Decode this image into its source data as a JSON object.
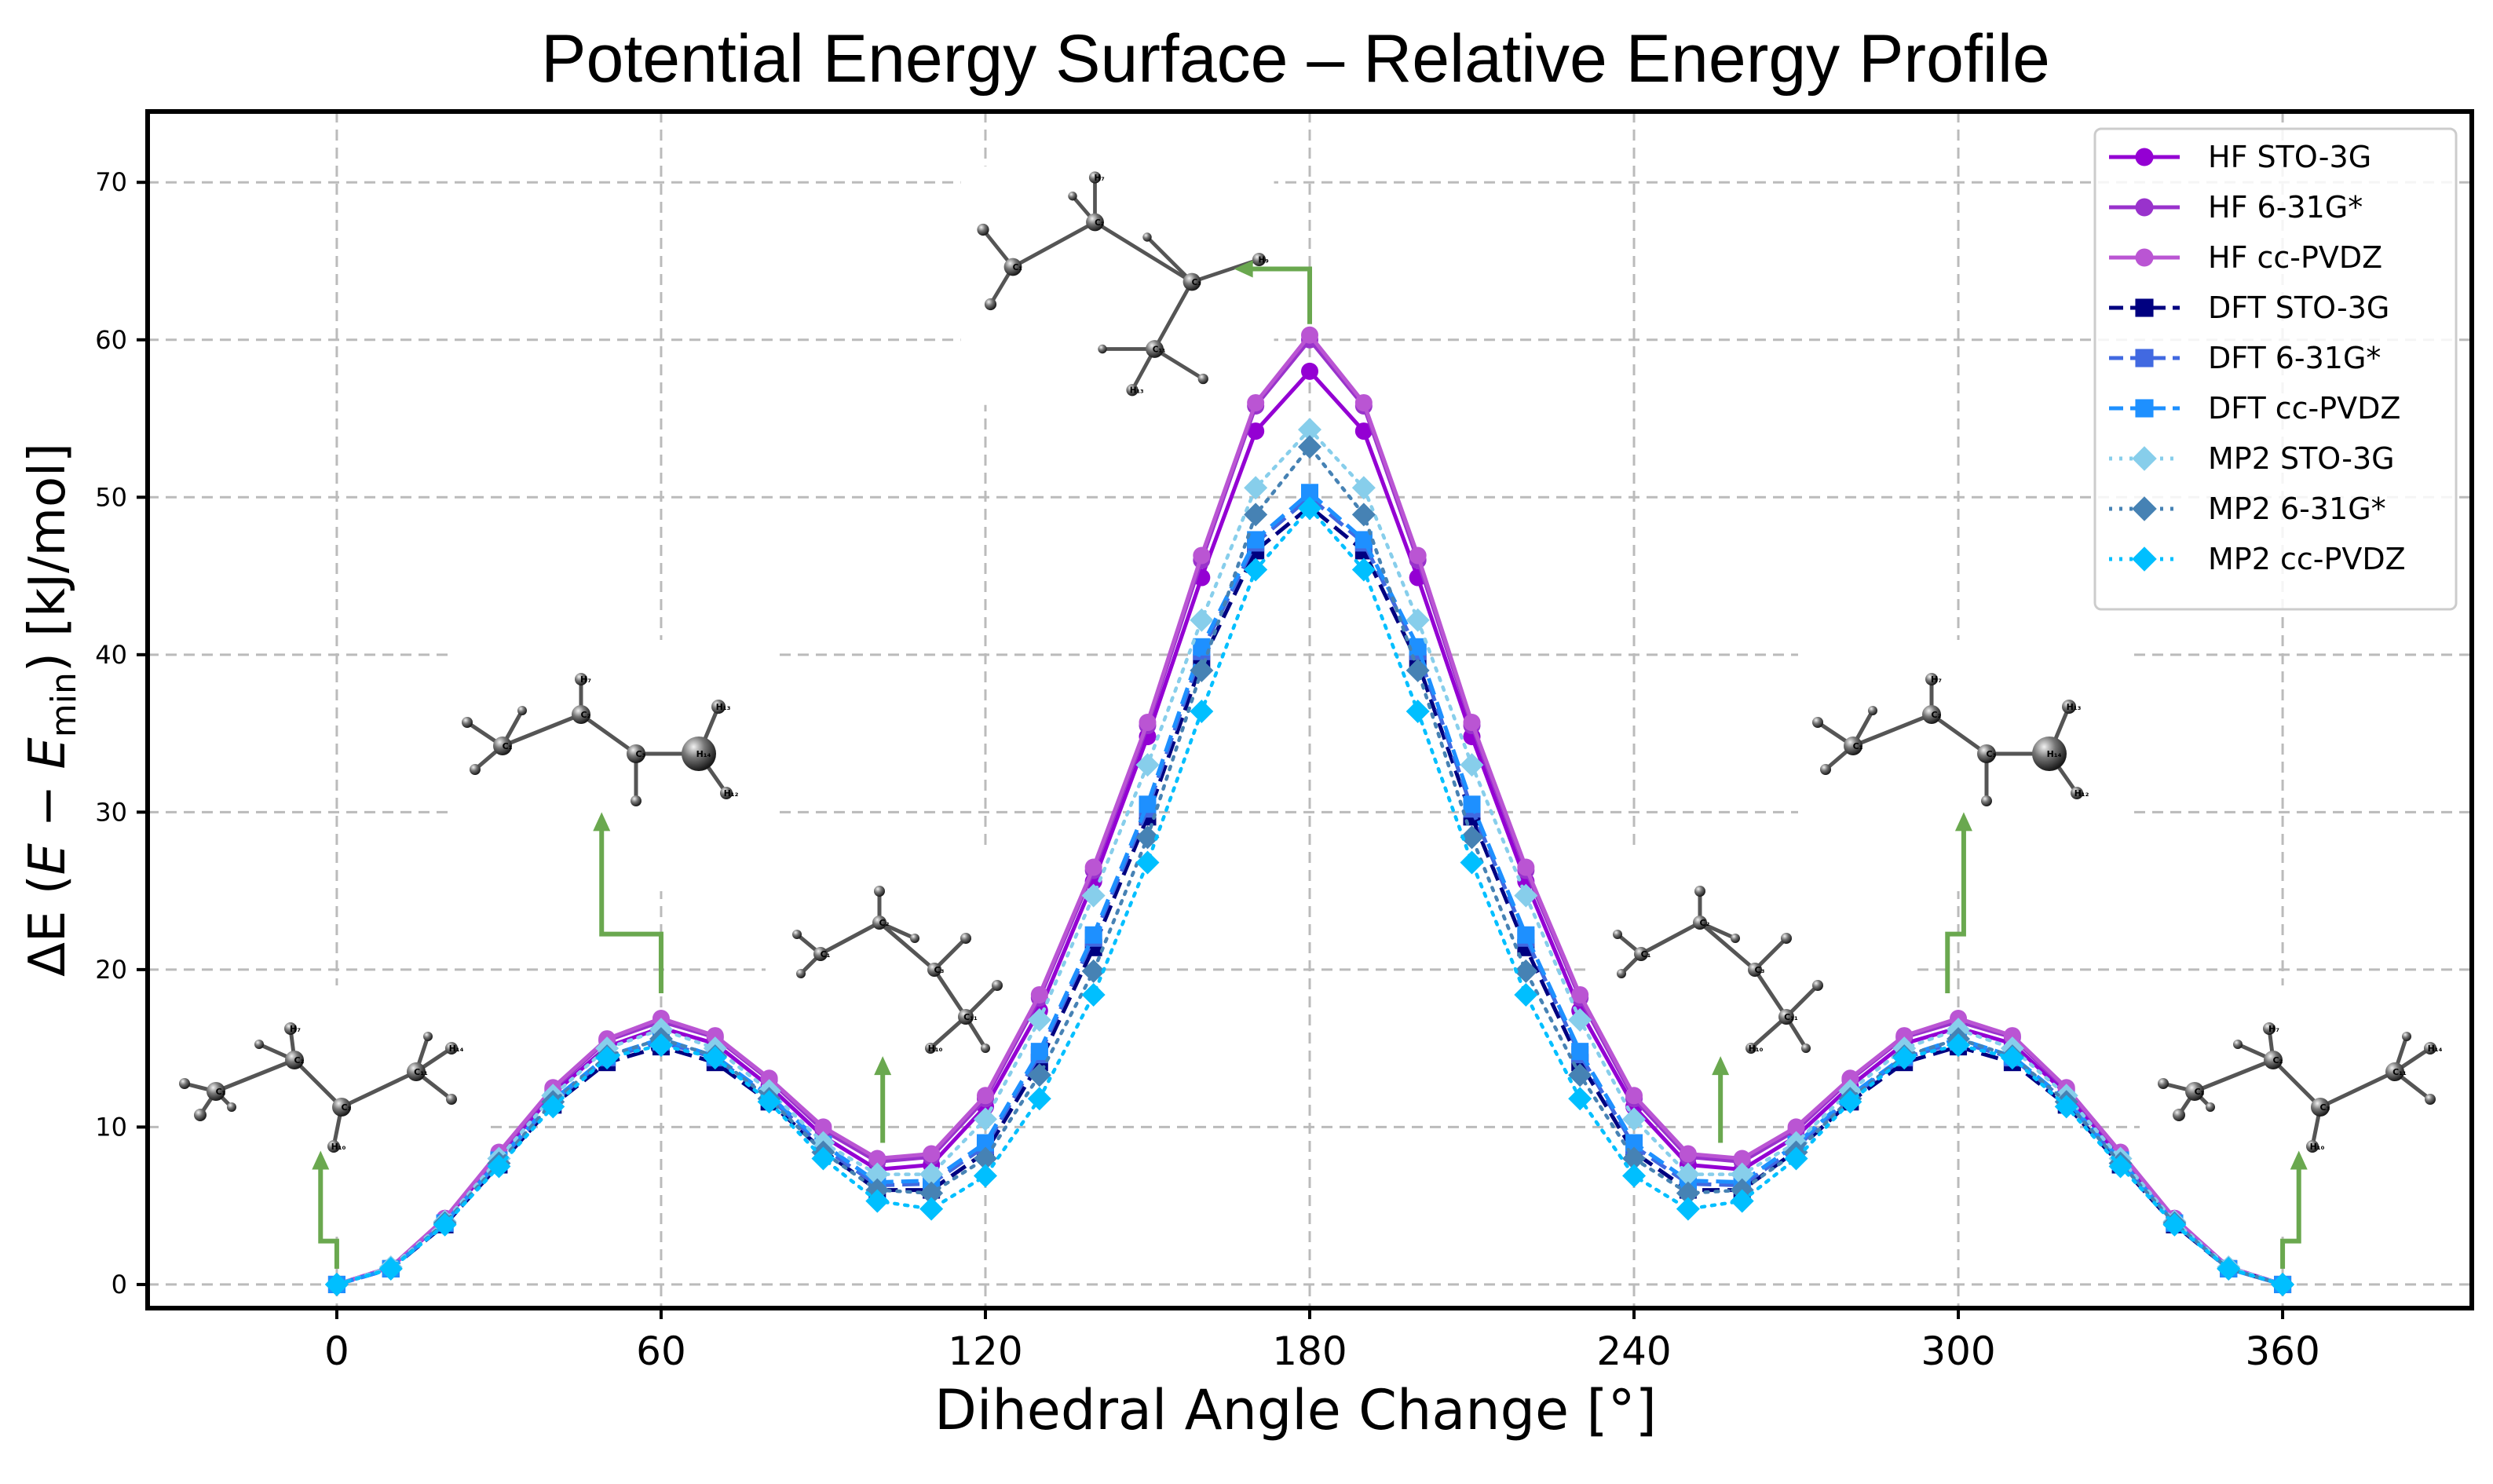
{
  "colors": {
    "hf_sto3g": "#9400D3",
    "hf_631g": "#9932CC",
    "hf_ccpvdz": "#BA55D3",
    "dft_sto3g": "#000080",
    "dft_631g": "#4169E1",
    "dft_ccpvdz": "#1E90FF",
    "mp2_sto3g": "#87CEEB",
    "mp2_631g": "#4682B4",
    "mp2_ccpvdz": "#00BFFF",
    "arrow": "#6AA84F",
    "grid": "#BBBBBB"
  },
  "chart_data": {
    "type": "line",
    "title": "Potential Energy Surface – Relative Energy Profile",
    "xlabel": "Dihedral Angle Change [°]",
    "ylabel": {
      "prefix": "ΔE (",
      "e1": "E",
      "minus": " − ",
      "e2": "E",
      "sub": "min",
      "suffix": ") [kJ/mol]"
    },
    "xlim": [
      -35,
      395
    ],
    "ylim": [
      -1.5,
      74.5
    ],
    "xticks": [
      0,
      60,
      120,
      180,
      240,
      300,
      360
    ],
    "yticks": [
      0,
      10,
      20,
      30,
      40,
      50,
      60,
      70
    ],
    "grid": true,
    "legend_position": "top-right",
    "x": [
      0,
      10,
      20,
      30,
      40,
      50,
      60,
      70,
      80,
      90,
      100,
      110,
      120,
      130,
      140,
      150,
      160,
      170,
      180,
      190,
      200,
      210,
      220,
      230,
      240,
      250,
      260,
      270,
      280,
      290,
      300,
      310,
      320,
      330,
      340,
      350,
      360
    ],
    "series": [
      {
        "name": "HF STO-3G",
        "color_key": "hf_sto3g",
        "style": "solid",
        "marker": "circle",
        "values": [
          0,
          1.1,
          4.1,
          8.1,
          12.1,
          15.1,
          16.3,
          15.3,
          12.6,
          9.4,
          7.3,
          7.6,
          11.3,
          17.4,
          25.6,
          34.8,
          44.9,
          54.2,
          58.0,
          54.2,
          44.9,
          34.8,
          25.6,
          17.4,
          11.3,
          7.6,
          7.3,
          9.4,
          12.6,
          15.3,
          16.3,
          15.3,
          12.1,
          8.1,
          4.1,
          1.1,
          0
        ]
      },
      {
        "name": "HF 6-31G*",
        "color_key": "hf_631g",
        "style": "solid",
        "marker": "circle",
        "values": [
          0,
          1.1,
          4.2,
          8.3,
          12.4,
          15.5,
          16.7,
          15.7,
          13.0,
          9.8,
          7.8,
          8.1,
          11.8,
          18.2,
          26.3,
          35.5,
          46.0,
          55.8,
          60.0,
          55.8,
          46.0,
          35.5,
          26.3,
          18.2,
          11.8,
          8.1,
          7.8,
          9.8,
          13.0,
          15.7,
          16.7,
          15.7,
          12.4,
          8.3,
          4.2,
          1.1,
          0
        ]
      },
      {
        "name": "HF cc-PVDZ",
        "color_key": "hf_ccpvdz",
        "style": "solid",
        "marker": "circle",
        "values": [
          0,
          1.1,
          4.2,
          8.4,
          12.5,
          15.6,
          16.9,
          15.8,
          13.1,
          10.0,
          8.0,
          8.3,
          12.0,
          18.4,
          26.5,
          35.7,
          46.3,
          56.0,
          60.3,
          56.0,
          46.3,
          35.7,
          26.5,
          18.4,
          12.0,
          8.3,
          8.0,
          10.0,
          13.1,
          15.8,
          16.9,
          15.8,
          12.5,
          8.4,
          4.2,
          1.1,
          0
        ]
      },
      {
        "name": "DFT STO-3G",
        "color_key": "dft_sto3g",
        "style": "dashed",
        "marker": "square",
        "values": [
          0,
          1.0,
          3.8,
          7.6,
          11.4,
          14.1,
          15.1,
          14.1,
          11.6,
          8.5,
          6.0,
          6.0,
          8.4,
          14.1,
          21.4,
          29.7,
          39.5,
          46.6,
          49.4,
          46.6,
          39.5,
          29.7,
          21.4,
          14.1,
          8.4,
          6.0,
          6.0,
          8.5,
          11.6,
          14.1,
          15.1,
          14.1,
          11.4,
          7.6,
          3.8,
          1.0,
          0
        ]
      },
      {
        "name": "DFT 6-31G*",
        "color_key": "dft_631g",
        "style": "dashed",
        "marker": "square",
        "values": [
          0,
          1.0,
          3.9,
          7.8,
          11.6,
          14.4,
          15.4,
          14.4,
          11.9,
          8.7,
          6.3,
          6.4,
          8.8,
          14.6,
          22.0,
          30.2,
          40.2,
          47.1,
          50.0,
          47.1,
          40.2,
          30.2,
          22.0,
          14.6,
          8.8,
          6.4,
          6.3,
          8.7,
          11.9,
          14.4,
          15.4,
          14.4,
          11.6,
          7.8,
          3.9,
          1.0,
          0
        ]
      },
      {
        "name": "DFT cc-PVDZ",
        "color_key": "dft_ccpvdz",
        "style": "dashed",
        "marker": "square",
        "values": [
          0,
          1.0,
          3.9,
          7.9,
          11.7,
          14.5,
          15.6,
          14.5,
          12.0,
          8.9,
          6.5,
          6.6,
          9.0,
          14.8,
          22.2,
          30.5,
          40.5,
          47.3,
          50.3,
          47.3,
          40.5,
          30.5,
          22.2,
          14.8,
          9.0,
          6.6,
          6.5,
          8.9,
          12.0,
          14.5,
          15.6,
          14.5,
          11.7,
          7.9,
          3.9,
          1.0,
          0
        ]
      },
      {
        "name": "MP2 STO-3G",
        "color_key": "mp2_sto3g",
        "style": "dotted",
        "marker": "diamond",
        "values": [
          0,
          1.1,
          4.0,
          8.0,
          12.0,
          15.0,
          16.2,
          15.0,
          12.3,
          9.0,
          7.0,
          7.0,
          10.5,
          16.8,
          24.7,
          33.0,
          42.2,
          50.6,
          54.3,
          50.6,
          42.2,
          33.0,
          24.7,
          16.8,
          10.5,
          7.0,
          7.0,
          9.0,
          12.3,
          15.0,
          16.2,
          15.0,
          12.0,
          8.0,
          4.0,
          1.1,
          0
        ]
      },
      {
        "name": "MP2 6-31G*",
        "color_key": "mp2_631g",
        "style": "dotted",
        "marker": "diamond",
        "values": [
          0,
          1.0,
          3.9,
          7.7,
          11.6,
          14.5,
          15.6,
          14.5,
          11.8,
          8.4,
          6.0,
          5.8,
          8.0,
          13.3,
          19.9,
          28.4,
          39.0,
          48.9,
          53.2,
          48.9,
          39.0,
          28.4,
          19.9,
          13.3,
          8.0,
          5.8,
          6.0,
          8.4,
          11.8,
          14.5,
          15.6,
          14.5,
          11.6,
          7.7,
          3.9,
          1.0,
          0
        ]
      },
      {
        "name": "MP2 cc-PVDZ",
        "color_key": "mp2_ccpvdz",
        "style": "dotted",
        "marker": "diamond",
        "values": [
          0,
          1.0,
          3.8,
          7.5,
          11.3,
          14.4,
          15.2,
          14.4,
          11.6,
          8.0,
          5.3,
          4.8,
          6.9,
          11.8,
          18.4,
          26.8,
          36.4,
          45.4,
          49.3,
          45.4,
          36.4,
          26.8,
          18.4,
          11.8,
          6.9,
          4.8,
          5.3,
          8.0,
          11.6,
          14.4,
          15.2,
          14.4,
          11.3,
          7.5,
          3.8,
          1.0,
          0
        ]
      }
    ],
    "annotations": [
      {
        "name": "annotation-0-deg",
        "tail_x": 0,
        "tail_y": 1,
        "head_y": 8.5,
        "elbow_dx": -3,
        "molecule": "gauche"
      },
      {
        "name": "annotation-60-deg",
        "tail_x": 60,
        "tail_y": 18.5,
        "head_y": 30,
        "elbow_dx": -11,
        "molecule": "eclipsed"
      },
      {
        "name": "annotation-100-deg",
        "tail_x": 101,
        "tail_y": 9,
        "head_y": 14.5,
        "elbow_dx": 0,
        "molecule": "staggered"
      },
      {
        "name": "annotation-180-deg",
        "tail_x": 180,
        "tail_y": 61,
        "head_x": 166,
        "head_y": 64.5,
        "molecule": "top"
      },
      {
        "name": "annotation-260-deg",
        "tail_x": 256,
        "tail_y": 9,
        "head_y": 14.5,
        "elbow_dx": 0,
        "molecule": "staggered"
      },
      {
        "name": "annotation-300-deg",
        "tail_x": 298,
        "tail_y": 18.5,
        "head_y": 30,
        "elbow_dx": 3,
        "molecule": "eclipsed"
      },
      {
        "name": "annotation-360-deg",
        "tail_x": 360,
        "tail_y": 1,
        "head_y": 8.5,
        "elbow_dx": 3,
        "molecule": "gauche"
      }
    ]
  }
}
